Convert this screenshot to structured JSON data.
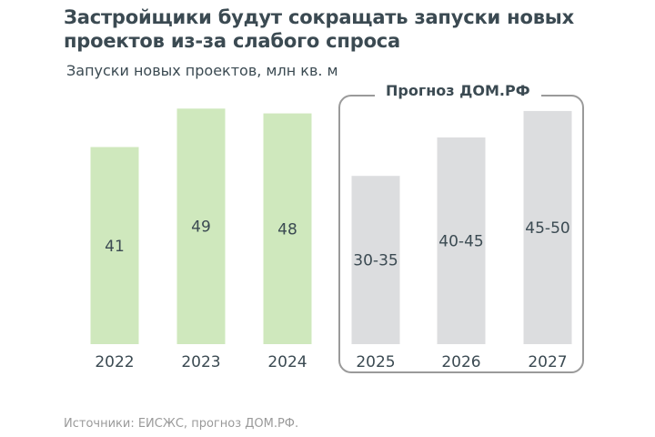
{
  "header": {
    "title_line1": "Застройщики будут сокращать запуски новых",
    "title_line2": "проектов из-за слабого спроса"
  },
  "forecast_label": "Прогноз ДОМ.РФ",
  "source": "Источники: ЕИСЖС, прогноз ДОМ.РФ.",
  "colors": {
    "actual": "#cfe8bd",
    "forecast": "#dcdddf",
    "text": "#3b4a52"
  },
  "chart_data": {
    "type": "bar",
    "title": "Застройщики будут сокращать запуски новых проектов из-за слабого спроса",
    "ylabel": "Запуски новых проектов, млн кв. м",
    "xlabel": "",
    "ylim": [
      0,
      50
    ],
    "grid": false,
    "categories": [
      "2022",
      "2023",
      "2024",
      "2025",
      "2026",
      "2027"
    ],
    "values": [
      41,
      49,
      48,
      35,
      43,
      48.5
    ],
    "labels": [
      "41",
      "49",
      "48",
      "30-35",
      "40-45",
      "45-50"
    ],
    "forecast": [
      false,
      false,
      false,
      true,
      true,
      true
    ],
    "forecast_ranges": [
      null,
      null,
      null,
      [
        30,
        35
      ],
      [
        40,
        45
      ],
      [
        45,
        50
      ]
    ],
    "annotations": [
      "Прогноз ДОМ.РФ"
    ]
  }
}
